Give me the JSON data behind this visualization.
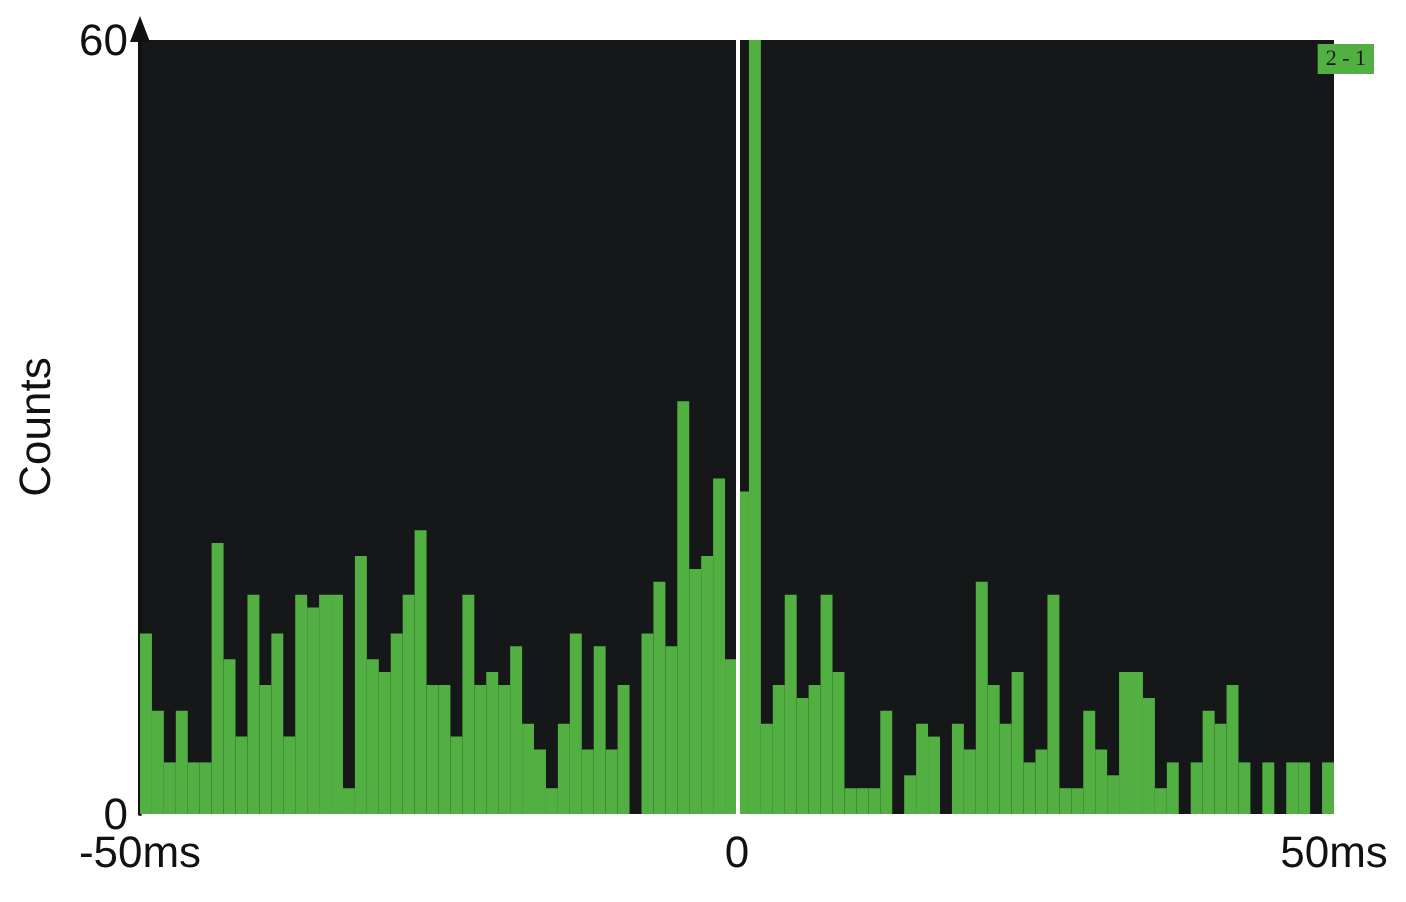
{
  "chart_data": {
    "type": "histogram",
    "ylabel": "Counts",
    "color": "#52b043",
    "bins": [
      -50,
      -49,
      -48,
      -47,
      -46,
      -45,
      -44,
      -43,
      -42,
      -41,
      -40,
      -39,
      -38,
      -37,
      -36,
      -35,
      -34,
      -33,
      -32,
      -31,
      -30,
      -29,
      -28,
      -27,
      -26,
      -25,
      -24,
      -23,
      -22,
      -21,
      -20,
      -19,
      -18,
      -17,
      -16,
      -15,
      -14,
      -13,
      -12,
      -11,
      -10,
      -9,
      -8,
      -7,
      -6,
      -5,
      -4,
      -3,
      -2,
      -1,
      0,
      1,
      2,
      3,
      4,
      5,
      6,
      7,
      8,
      9,
      10,
      11,
      12,
      13,
      14,
      15,
      16,
      17,
      18,
      19,
      20,
      21,
      22,
      23,
      24,
      25,
      26,
      27,
      28,
      29,
      30,
      31,
      32,
      33,
      34,
      35,
      36,
      37,
      38,
      39,
      40,
      41,
      42,
      43,
      44,
      45,
      46,
      47,
      48,
      49,
      50
    ],
    "values": [
      14,
      8,
      4,
      8,
      4,
      4,
      21,
      12,
      6,
      17,
      10,
      14,
      6,
      17,
      16,
      17,
      17,
      2,
      20,
      12,
      11,
      14,
      17,
      22,
      10,
      10,
      6,
      17,
      10,
      11,
      10,
      13,
      7,
      5,
      2,
      7,
      14,
      5,
      13,
      5,
      10,
      0,
      14,
      18,
      13,
      32,
      19,
      20,
      26,
      12,
      25,
      60,
      7,
      10,
      17,
      9,
      10,
      17,
      11,
      2,
      2,
      2,
      8,
      0,
      3,
      7,
      6,
      0,
      7,
      5,
      18,
      10,
      7,
      11,
      4,
      5,
      17,
      2,
      2,
      8,
      5,
      3,
      11,
      11,
      9,
      2,
      4,
      0,
      4,
      8,
      7,
      10,
      4,
      0,
      4,
      0,
      4,
      4,
      0,
      4
    ],
    "xlim": [
      -50,
      50
    ],
    "xticks": [
      {
        "value": -50,
        "label": "-50ms"
      },
      0,
      {
        "value": 50,
        "label": "50ms"
      }
    ],
    "ylim": [
      0,
      60
    ],
    "yticks": [
      0,
      60
    ],
    "ref_lines": [
      {
        "axis": "x",
        "value": 0,
        "color": "#ffffff"
      }
    ],
    "annotations": [
      "2 - 1"
    ],
    "grid": false
  }
}
